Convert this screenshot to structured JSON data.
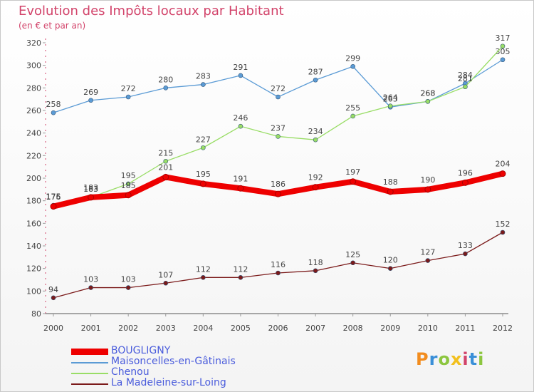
{
  "title": "Evolution des Impôts locaux par Habitant",
  "subtitle": "(en € et par an)",
  "logo": "Proxiti",
  "chart_data": {
    "type": "line",
    "x": [
      2000,
      2001,
      2002,
      2003,
      2004,
      2005,
      2006,
      2007,
      2008,
      2009,
      2010,
      2011,
      2012
    ],
    "xlabel": "",
    "ylabel": "",
    "ylim": [
      80,
      320
    ],
    "yticks": [
      80,
      100,
      120,
      140,
      160,
      180,
      200,
      220,
      240,
      260,
      280,
      300,
      320
    ],
    "grid": false,
    "legend": "bottom-left",
    "series": [
      {
        "name": "BOUGLIGNY",
        "color": "#ee0000",
        "values": [
          175,
          183,
          185,
          201,
          195,
          191,
          186,
          192,
          197,
          188,
          190,
          196,
          204
        ]
      },
      {
        "name": "Maisoncelles-en-Gâtinais",
        "color": "#5b9bd5",
        "values": [
          258,
          269,
          272,
          280,
          283,
          291,
          272,
          287,
          299,
          263,
          268,
          284,
          305
        ]
      },
      {
        "name": "Chenou",
        "color": "#99dd66",
        "values": [
          176,
          183,
          195,
          215,
          227,
          246,
          237,
          234,
          255,
          264,
          268,
          281,
          317
        ]
      },
      {
        "name": "La Madeleine-sur-Loing",
        "color": "#7b1a1a",
        "values": [
          94,
          103,
          103,
          107,
          112,
          112,
          116,
          118,
          125,
          120,
          127,
          133,
          152
        ]
      }
    ]
  }
}
